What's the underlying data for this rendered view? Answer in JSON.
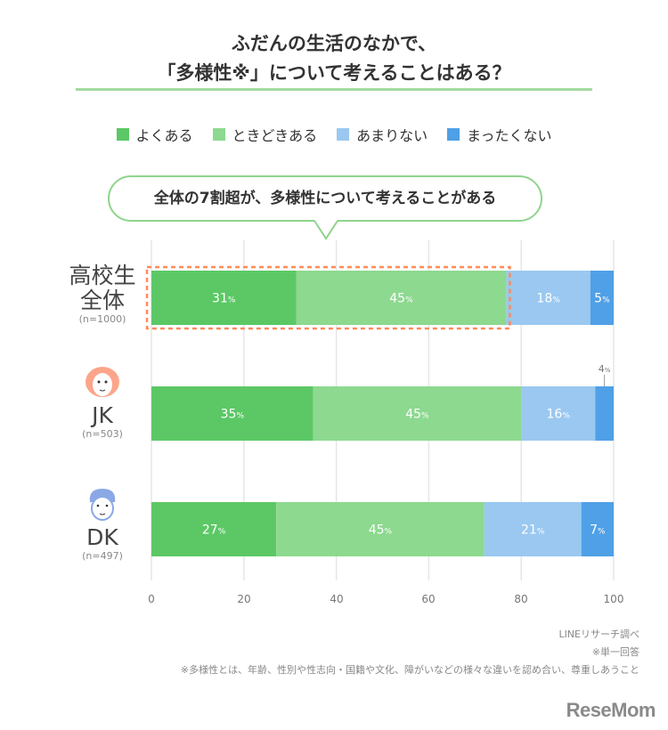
{
  "title_lines": [
    "ふだんの生活のなかで、",
    "「多様性※」について考えることはある？"
  ],
  "callout": "全体の7割超が、多様性について考えることがある",
  "colors": {
    "accent_line": "#a5dba0",
    "highlight_box": "#ff8a5b"
  },
  "chart_data": {
    "type": "bar",
    "orientation": "horizontal-stacked",
    "series": [
      {
        "name": "よくある",
        "color": "#5cc865",
        "values": [
          31,
          35,
          27
        ]
      },
      {
        "name": "ときどきある",
        "color": "#8dd98f",
        "values": [
          45,
          45,
          45
        ]
      },
      {
        "name": "あまりない",
        "color": "#9ac8f0",
        "values": [
          18,
          16,
          21
        ]
      },
      {
        "name": "まったくない",
        "color": "#4fa0e6",
        "values": [
          5,
          4,
          7
        ]
      }
    ],
    "categories": [
      {
        "label_lines": [
          "高校生",
          "全体"
        ],
        "n": "(n=1000)",
        "icon": ""
      },
      {
        "label_lines": [
          "JK"
        ],
        "n": "(n=503)",
        "icon": "girl-face-icon"
      },
      {
        "label_lines": [
          "DK"
        ],
        "n": "(n=497)",
        "icon": "boy-face-icon"
      }
    ],
    "unit": "%",
    "xlim": [
      0,
      100
    ],
    "xticks": [
      "0",
      "20",
      "40",
      "60",
      "80",
      "100"
    ],
    "grid": true,
    "legend_position": "top",
    "highlight": "高校生全体: よくある + ときどきある"
  },
  "notes": [
    "LINEリサーチ調べ",
    "※単一回答",
    "※多様性とは、年齢、性別や性志向・国籍や文化、障がいなどの様々な違いを認め合い、尊重しあうこと"
  ],
  "logo": "ReseMom"
}
